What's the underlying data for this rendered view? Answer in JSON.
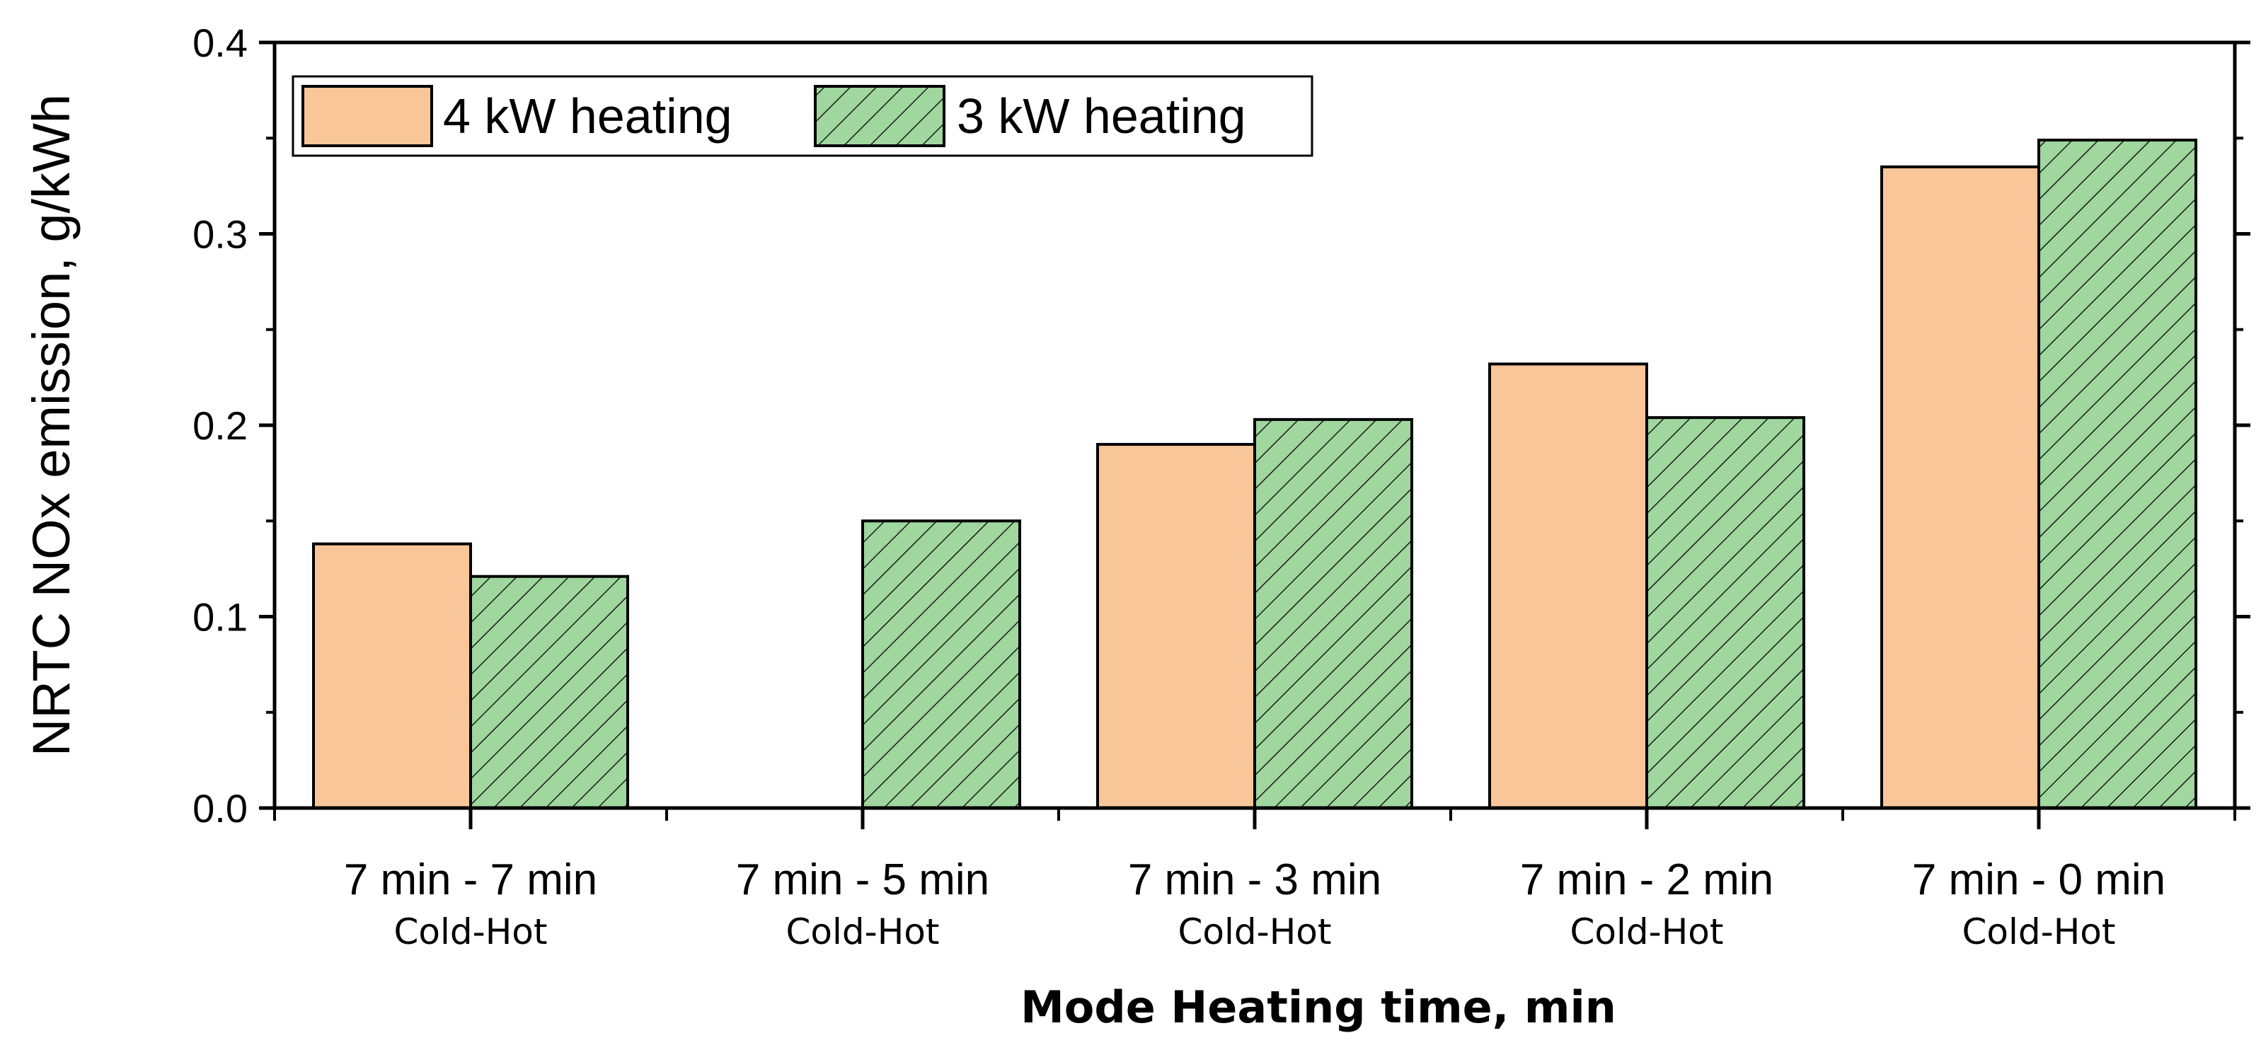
{
  "chart_data": {
    "type": "bar",
    "title": "",
    "xlabel": "Mode Heating time, min",
    "ylabel": "NRTC NOx emission, g/kWh",
    "ylim": [
      0,
      0.4
    ],
    "yticks": [
      "0.0",
      "0.1",
      "0.2",
      "0.3",
      "0.4"
    ],
    "categories": [
      "7 min - 7 min",
      "7 min - 5 min",
      "7 min - 3 min",
      "7 min - 2 min",
      "7 min - 0 min"
    ],
    "category_sublabels": [
      "Cold-Hot",
      "Cold-Hot",
      "Cold-Hot",
      "Cold-Hot",
      "Cold-Hot"
    ],
    "grid": false,
    "legend_position": "top-left",
    "series": [
      {
        "name": "4 kW heating",
        "values": [
          0.138,
          null,
          0.19,
          0.232,
          0.335
        ],
        "color": "#F9C69A",
        "pattern": "solid"
      },
      {
        "name": "3 kW heating",
        "values": [
          0.121,
          0.15,
          0.203,
          0.204,
          0.349
        ],
        "color": "#9FD79F",
        "pattern": "hatch"
      }
    ]
  }
}
